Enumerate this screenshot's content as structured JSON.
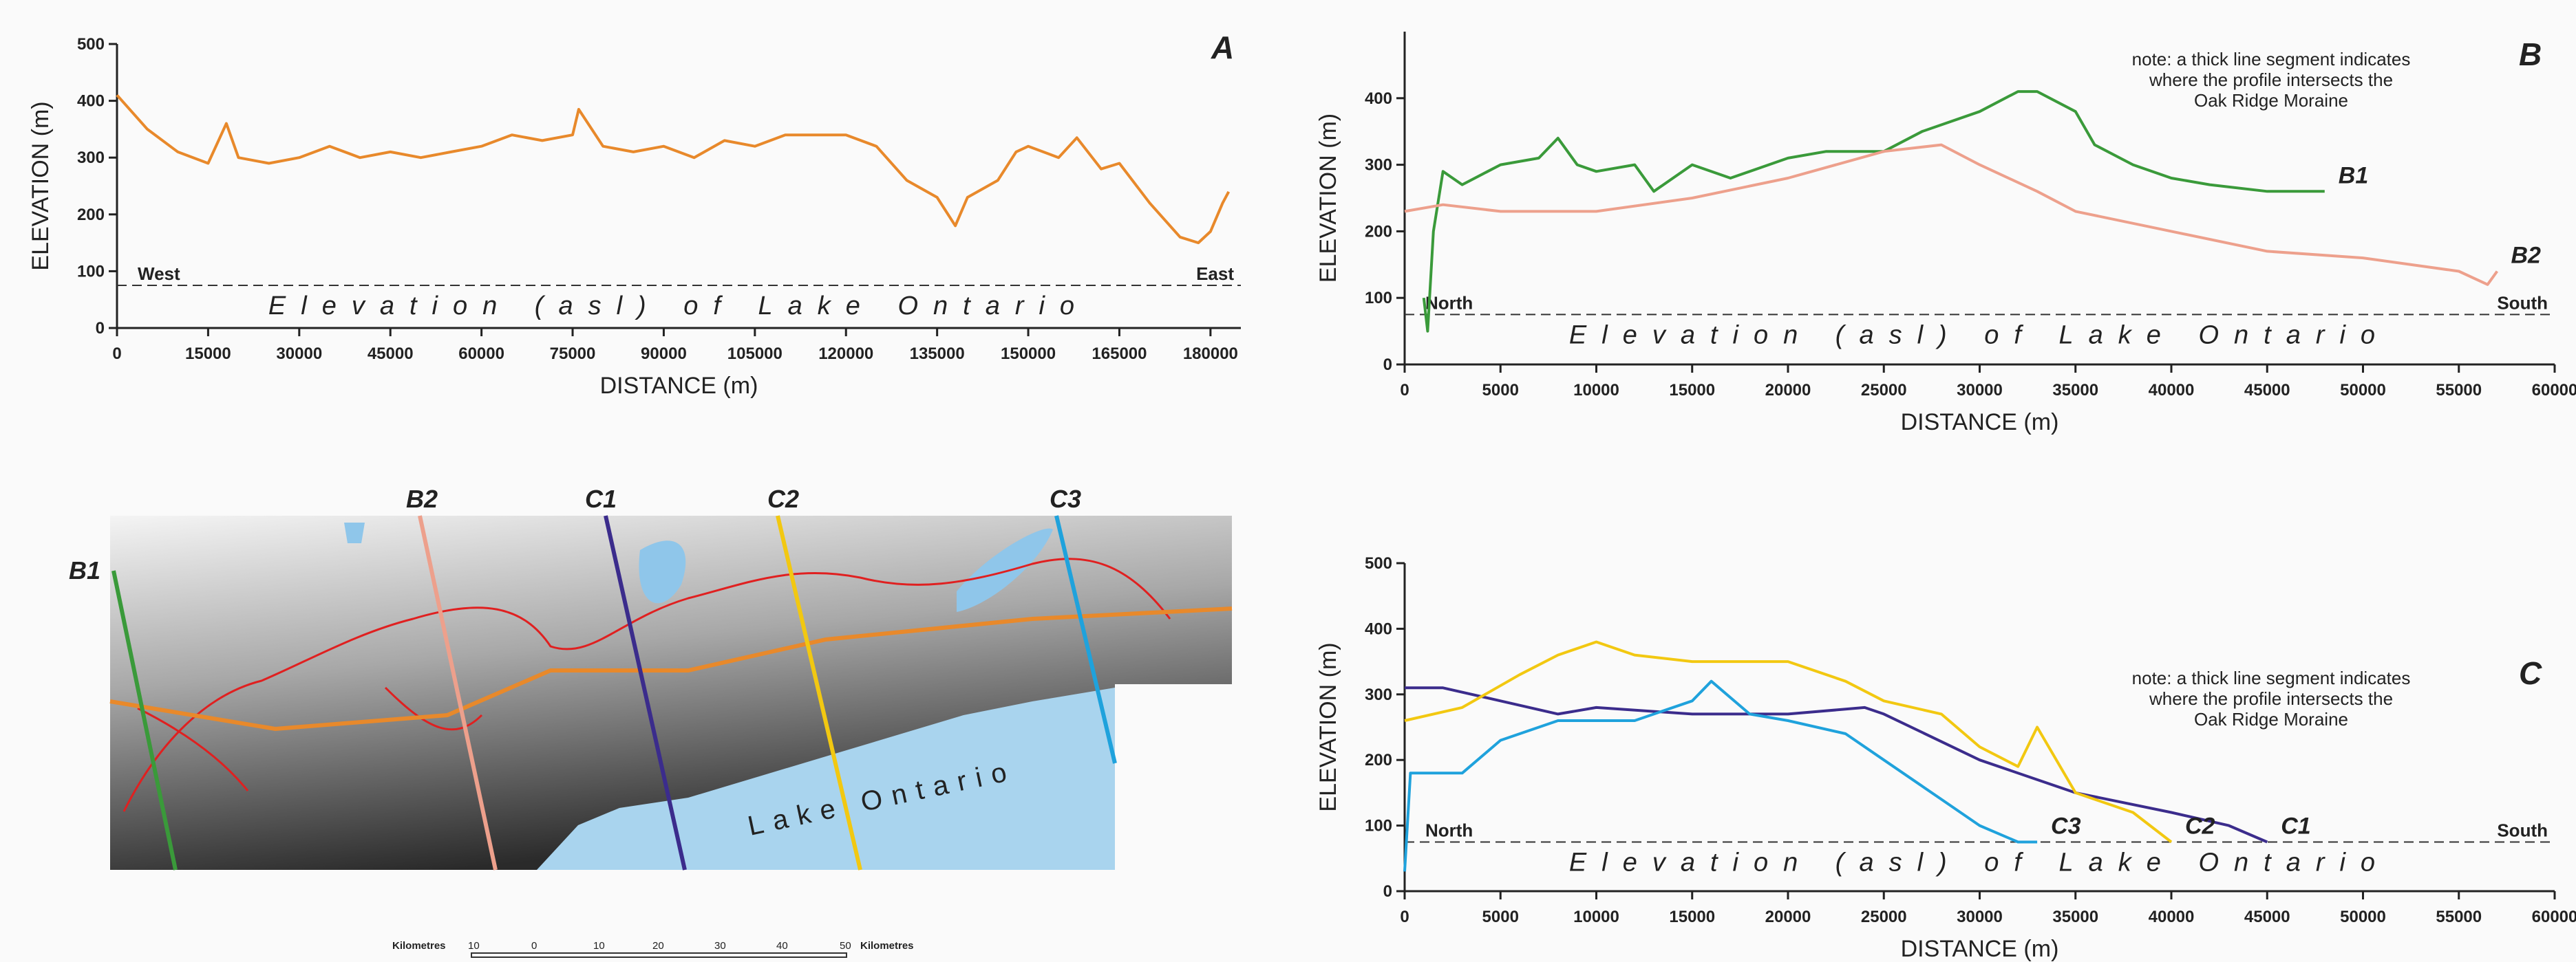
{
  "chart_data": [
    {
      "type": "line",
      "title": "A",
      "xlabel": "DISTANCE (m)",
      "ylabel": "ELEVATION (m)",
      "xlim": [
        0,
        185000
      ],
      "ylim": [
        0,
        500
      ],
      "xticks": [
        0,
        15000,
        30000,
        45000,
        60000,
        75000,
        90000,
        105000,
        120000,
        135000,
        150000,
        165000,
        180000
      ],
      "yticks": [
        0,
        100,
        200,
        300,
        400,
        500
      ],
      "reference_line": {
        "value": 75,
        "label": "Elevation (asl) of Lake Ontario"
      },
      "end_labels": [
        "West",
        "East"
      ],
      "series": [
        {
          "color": "#e8892b",
          "x": [
            0,
            5000,
            10000,
            15000,
            18000,
            20000,
            25000,
            30000,
            35000,
            40000,
            45000,
            50000,
            55000,
            60000,
            65000,
            70000,
            75000,
            76000,
            80000,
            85000,
            90000,
            95000,
            100000,
            105000,
            110000,
            115000,
            120000,
            125000,
            130000,
            135000,
            138000,
            140000,
            145000,
            148000,
            150000,
            155000,
            158000,
            162000,
            165000,
            170000,
            175000,
            178000,
            180000,
            182000,
            183000
          ],
          "values": [
            410,
            350,
            310,
            290,
            360,
            300,
            290,
            300,
            320,
            300,
            310,
            300,
            310,
            320,
            340,
            330,
            340,
            385,
            320,
            310,
            320,
            300,
            330,
            320,
            340,
            340,
            340,
            320,
            260,
            230,
            180,
            230,
            260,
            310,
            320,
            300,
            335,
            280,
            290,
            220,
            160,
            150,
            170,
            220,
            240
          ]
        }
      ]
    },
    {
      "type": "line",
      "title": "B",
      "xlabel": "DISTANCE (m)",
      "ylabel": "ELEVATION (m)",
      "xlim": [
        0,
        60000
      ],
      "ylim": [
        0,
        500
      ],
      "xticks": [
        0,
        5000,
        10000,
        15000,
        20000,
        25000,
        30000,
        35000,
        40000,
        45000,
        50000,
        55000,
        60000
      ],
      "yticks": [
        0,
        100,
        200,
        300,
        400
      ],
      "reference_line": {
        "value": 75,
        "label": "Elevation (asl) of Lake Ontario"
      },
      "end_labels": [
        "North",
        "South"
      ],
      "note": [
        "note: a thick line segment indicates",
        "where the profile intersects the",
        "Oak Ridge Moraine"
      ],
      "series": [
        {
          "name": "B1",
          "color": "#3a9a3a",
          "x": [
            1000,
            1200,
            1500,
            2000,
            3000,
            5000,
            7000,
            8000,
            9000,
            10000,
            12000,
            13000,
            15000,
            17000,
            20000,
            22000,
            25000,
            27000,
            30000,
            32000,
            33000,
            35000,
            36000,
            38000,
            40000,
            42000,
            45000,
            48000
          ],
          "values": [
            100,
            50,
            200,
            290,
            270,
            300,
            310,
            340,
            300,
            290,
            300,
            260,
            300,
            280,
            310,
            320,
            320,
            350,
            380,
            410,
            410,
            380,
            330,
            300,
            280,
            270,
            260,
            260
          ]
        },
        {
          "name": "B2",
          "color": "#eda08c",
          "x": [
            0,
            2000,
            5000,
            10000,
            15000,
            20000,
            25000,
            28000,
            30000,
            33000,
            35000,
            40000,
            45000,
            50000,
            55000,
            56500,
            57000
          ],
          "values": [
            230,
            240,
            230,
            230,
            250,
            280,
            320,
            330,
            300,
            260,
            230,
            200,
            170,
            160,
            140,
            120,
            140
          ]
        }
      ]
    },
    {
      "type": "line",
      "title": "C",
      "xlabel": "DISTANCE (m)",
      "ylabel": "ELEVATION (m)",
      "xlim": [
        0,
        60000
      ],
      "ylim": [
        0,
        500
      ],
      "xticks": [
        0,
        5000,
        10000,
        15000,
        20000,
        25000,
        30000,
        35000,
        40000,
        45000,
        50000,
        55000,
        60000
      ],
      "yticks": [
        0,
        100,
        200,
        300,
        400,
        500
      ],
      "reference_line": {
        "value": 75,
        "label": "Elevation (asl) of Lake Ontario"
      },
      "end_labels": [
        "North",
        "South"
      ],
      "note": [
        "note: a thick line segment indicates",
        "where the profile intersects the",
        "Oak Ridge Moraine"
      ],
      "series": [
        {
          "name": "C1",
          "color": "#3b2c8c",
          "x": [
            0,
            2000,
            5000,
            8000,
            10000,
            15000,
            20000,
            24000,
            25000,
            30000,
            35000,
            40000,
            43000,
            45000
          ],
          "values": [
            310,
            310,
            290,
            270,
            280,
            270,
            270,
            280,
            270,
            200,
            150,
            120,
            100,
            75
          ]
        },
        {
          "name": "C2",
          "color": "#f2c811",
          "x": [
            0,
            3000,
            6000,
            8000,
            10000,
            12000,
            15000,
            20000,
            23000,
            25000,
            28000,
            30000,
            32000,
            33000,
            35000,
            38000,
            40000
          ],
          "values": [
            260,
            280,
            330,
            360,
            380,
            360,
            350,
            350,
            320,
            290,
            270,
            220,
            190,
            250,
            150,
            120,
            75
          ]
        },
        {
          "name": "C3",
          "color": "#1fa2dc",
          "x": [
            0,
            300,
            3000,
            5000,
            8000,
            12000,
            15000,
            16000,
            18000,
            20000,
            23000,
            25000,
            28000,
            30000,
            32000,
            33000
          ],
          "values": [
            30,
            180,
            180,
            230,
            260,
            260,
            290,
            320,
            270,
            260,
            240,
            200,
            140,
            100,
            75,
            75
          ]
        }
      ]
    }
  ],
  "map": {
    "profile_labels": [
      "B1",
      "B2",
      "C1",
      "C2",
      "C3"
    ],
    "lake": "Lake Ontario",
    "scale_left": "Kilometres",
    "scale_ticks": [
      "10",
      "0",
      "10",
      "20",
      "30",
      "40",
      "50"
    ],
    "scale_right": "Kilometres"
  }
}
